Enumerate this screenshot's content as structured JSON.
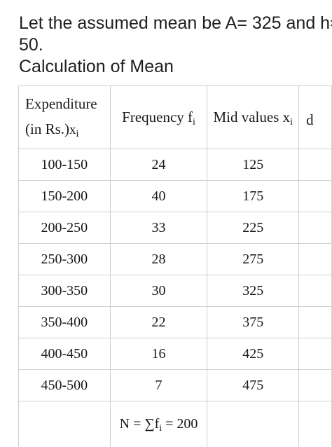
{
  "intro": {
    "line1": "Let the assumed mean be A= 325 and h=",
    "line2": "50.",
    "heading": "Calculation of Mean"
  },
  "table": {
    "headers": {
      "expenditure_line1": "Expenditure",
      "expenditure_line2": "(in Rs.)",
      "expenditure_var": "x",
      "expenditure_sub": "i",
      "frequency": "Frequency f",
      "frequency_sub": "i",
      "midvalues": "Mid values x",
      "midvalues_sub": "i",
      "d_partial": "d"
    },
    "rows": [
      {
        "expenditure": "100-150",
        "frequency": "24",
        "mid": "125"
      },
      {
        "expenditure": "150-200",
        "frequency": "40",
        "mid": "175"
      },
      {
        "expenditure": "200-250",
        "frequency": "33",
        "mid": "225"
      },
      {
        "expenditure": "250-300",
        "frequency": "28",
        "mid": "275"
      },
      {
        "expenditure": "300-350",
        "frequency": "30",
        "mid": "325"
      },
      {
        "expenditure": "350-400",
        "frequency": "22",
        "mid": "375"
      },
      {
        "expenditure": "400-450",
        "frequency": "16",
        "mid": "425"
      },
      {
        "expenditure": "450-500",
        "frequency": "7",
        "mid": "475"
      }
    ],
    "total": {
      "prefix": "N = ∑f",
      "sub": "i",
      "suffix": " = 200"
    }
  }
}
